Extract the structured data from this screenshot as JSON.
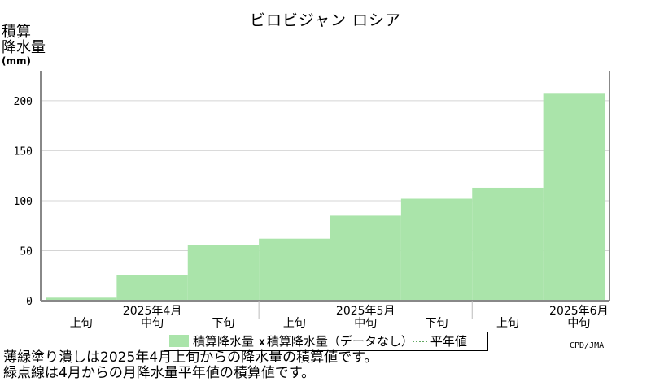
{
  "chart_data": {
    "type": "bar",
    "title": "ビロビジャン ロシア",
    "ylabel_lines": [
      "積算",
      "降水量"
    ],
    "yunit": "(mm)",
    "ylim": [
      0,
      230
    ],
    "yticks": [
      0,
      50,
      100,
      150,
      200
    ],
    "grid": true,
    "categories": [
      "上旬",
      "中旬",
      "下旬",
      "上旬",
      "中旬",
      "下旬",
      "上旬",
      "中旬"
    ],
    "month_labels": [
      "2025年4月",
      "2025年5月",
      "2025年6月"
    ],
    "series": [
      {
        "name": "積算降水量",
        "values": [
          3,
          26,
          56,
          62,
          85,
          102,
          113,
          207
        ]
      }
    ],
    "legend": {
      "position": "bottom",
      "items": [
        "積算降水量",
        "積算降水量（データなし）",
        "平年値"
      ],
      "missing_marker": "x"
    },
    "colors": {
      "bar": "#aae4aa",
      "axis": "#888888",
      "grid": "#d4d4d4"
    }
  },
  "credit": "CPD/JMA",
  "notes": [
    "薄緑塗り潰しは2025年4月上旬からの降水量の積算値です。",
    "緑点線は4月からの月降水量平年値の積算値です。"
  ]
}
